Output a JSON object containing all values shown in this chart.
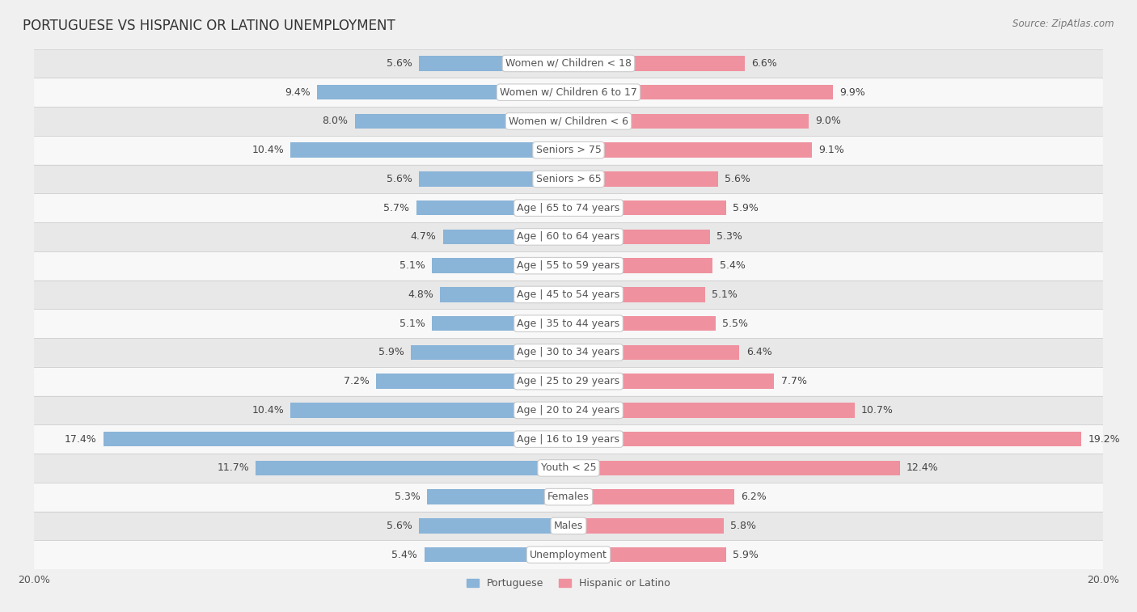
{
  "title": "PORTUGUESE VS HISPANIC OR LATINO UNEMPLOYMENT",
  "source": "Source: ZipAtlas.com",
  "categories": [
    "Unemployment",
    "Males",
    "Females",
    "Youth < 25",
    "Age | 16 to 19 years",
    "Age | 20 to 24 years",
    "Age | 25 to 29 years",
    "Age | 30 to 34 years",
    "Age | 35 to 44 years",
    "Age | 45 to 54 years",
    "Age | 55 to 59 years",
    "Age | 60 to 64 years",
    "Age | 65 to 74 years",
    "Seniors > 65",
    "Seniors > 75",
    "Women w/ Children < 6",
    "Women w/ Children 6 to 17",
    "Women w/ Children < 18"
  ],
  "portuguese": [
    5.4,
    5.6,
    5.3,
    11.7,
    17.4,
    10.4,
    7.2,
    5.9,
    5.1,
    4.8,
    5.1,
    4.7,
    5.7,
    5.6,
    10.4,
    8.0,
    9.4,
    5.6
  ],
  "hispanic": [
    5.9,
    5.8,
    6.2,
    12.4,
    19.2,
    10.7,
    7.7,
    6.4,
    5.5,
    5.1,
    5.4,
    5.3,
    5.9,
    5.6,
    9.1,
    9.0,
    9.9,
    6.6
  ],
  "portuguese_color": "#8ab4d8",
  "hispanic_color": "#f0919f",
  "max_val": 20.0,
  "bar_height": 0.52,
  "bg_color": "#f0f0f0",
  "row_color_even": "#f8f8f8",
  "row_color_odd": "#e8e8e8",
  "row_border_color": "#d0d0d0",
  "label_fontsize": 9.0,
  "title_fontsize": 12,
  "source_fontsize": 8.5,
  "value_fontsize": 9.0
}
